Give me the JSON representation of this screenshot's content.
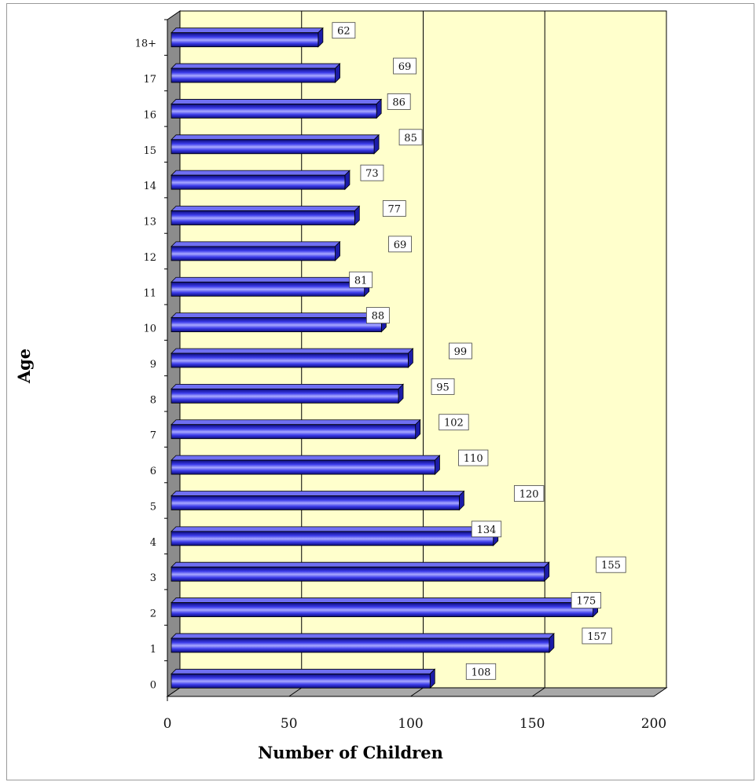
{
  "chart_data": {
    "type": "bar",
    "orientation": "horizontal",
    "title": "",
    "xlabel": "Number of Children",
    "ylabel": "Age",
    "categories": [
      "0",
      "1",
      "2",
      "3",
      "4",
      "5",
      "6",
      "7",
      "8",
      "9",
      "10",
      "11",
      "12",
      "13",
      "14",
      "15",
      "16",
      "17",
      "18+"
    ],
    "values": [
      108,
      157,
      175,
      155,
      134,
      120,
      110,
      102,
      95,
      99,
      88,
      81,
      69,
      77,
      73,
      85,
      86,
      69,
      62
    ],
    "xlim": [
      0,
      200
    ],
    "xticks": [
      0,
      50,
      100,
      150,
      200
    ],
    "grid": true,
    "legend": "none",
    "colors": {
      "bar": "#3a3ae8",
      "plot_background": "#ffffcc",
      "floor": "#a8a8a8"
    }
  }
}
